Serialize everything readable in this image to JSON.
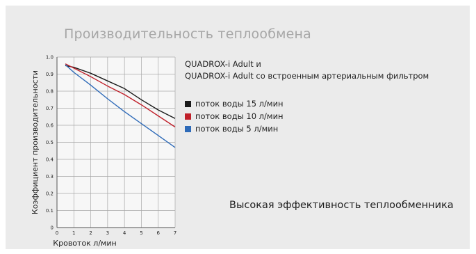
{
  "title": "Производительность теплообмена",
  "product": {
    "line1": "QUADROX-i Adult и",
    "line2": "QUADROX-i Adult со встроенным артериальным фильтром"
  },
  "tagline": "Высокая эффективность теплообменника",
  "chart_data": {
    "type": "line",
    "xlabel": "Кровоток л/мин",
    "ylabel": "Коэффициент производительности",
    "xlim": [
      0,
      7
    ],
    "ylim": [
      0,
      1.0
    ],
    "xticks": [
      "0",
      "1",
      "2",
      "3",
      "4",
      "5",
      "6",
      "7"
    ],
    "yticks": [
      "0",
      "0.1",
      "0.2",
      "0.3",
      "0.4",
      "0.5",
      "0.6",
      "0.7",
      "0.8",
      "0.9",
      "1.0"
    ],
    "grid": true,
    "legend_position": "right",
    "series": [
      {
        "name": "поток воды 15 л/мин",
        "color": "#1a1a1a",
        "points": [
          [
            0.5,
            0.95
          ],
          [
            1,
            0.94
          ],
          [
            2,
            0.905
          ],
          [
            3,
            0.86
          ],
          [
            4,
            0.815
          ],
          [
            5,
            0.75
          ],
          [
            6,
            0.69
          ],
          [
            7,
            0.64
          ]
        ]
      },
      {
        "name": "поток воды 10 л/мин",
        "color": "#c0202a",
        "points": [
          [
            0.5,
            0.96
          ],
          [
            1,
            0.935
          ],
          [
            2,
            0.885
          ],
          [
            3,
            0.83
          ],
          [
            4,
            0.78
          ],
          [
            5,
            0.72
          ],
          [
            6,
            0.655
          ],
          [
            7,
            0.59
          ]
        ]
      },
      {
        "name": "поток воды 5 л/мин",
        "color": "#2e6ab8",
        "points": [
          [
            0.5,
            0.955
          ],
          [
            1,
            0.91
          ],
          [
            2,
            0.835
          ],
          [
            3,
            0.755
          ],
          [
            4,
            0.68
          ],
          [
            5,
            0.61
          ],
          [
            6,
            0.54
          ],
          [
            7,
            0.47
          ]
        ]
      }
    ]
  }
}
